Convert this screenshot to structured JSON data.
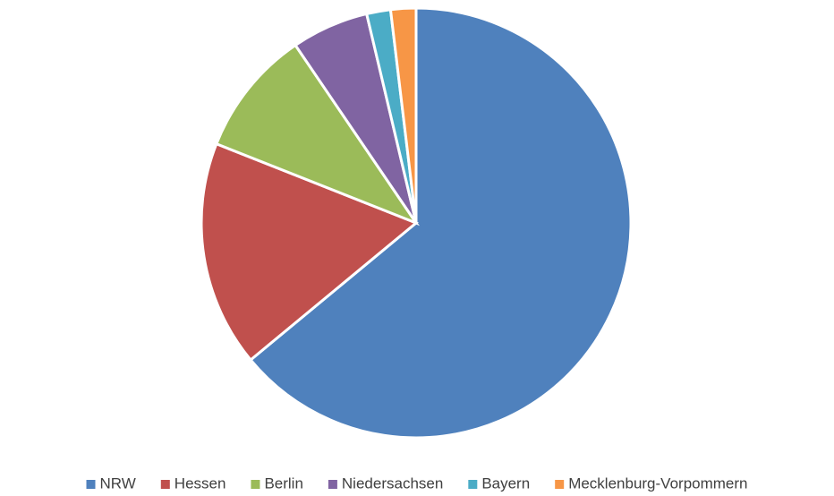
{
  "chart_data": {
    "type": "pie",
    "categories": [
      "NRW",
      "Hessen",
      "Berlin",
      "Niedersachsen",
      "Bayern",
      "Mecklenburg-Vorpommern"
    ],
    "values": [
      64,
      17,
      9.5,
      5.8,
      1.8,
      1.9
    ],
    "colors": [
      "#4f81bd",
      "#c0504d",
      "#9bbb59",
      "#8064a2",
      "#4bacc6",
      "#f79646"
    ],
    "legend": "bottom"
  }
}
